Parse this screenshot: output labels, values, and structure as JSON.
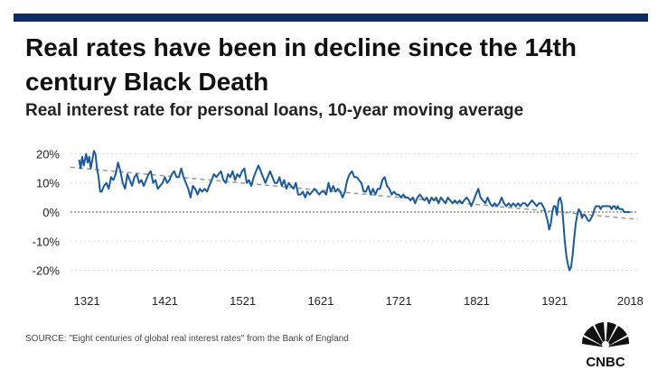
{
  "header": {
    "title": "Real rates have been in decline since the 14th century Black Death",
    "subtitle": "Real interest rate for personal loans, 10-year moving average"
  },
  "footer": {
    "source": "SOURCE: \"Eight centuries of global real interest rates\" from the Bank of England",
    "logo_text": "CNBC"
  },
  "colors": {
    "bar": "#0b2a66",
    "line": "#1a5a9a",
    "trend": "#9a9a9a",
    "grid": "#dcdcdc"
  },
  "chart_data": {
    "type": "line",
    "title": "Real rates have been in decline since the 14th century Black Death",
    "subtitle": "Real interest rate for personal loans, 10-year moving average",
    "xlim": [
      1300,
      2028
    ],
    "ylim": [
      -22,
      22
    ],
    "x_ticks": [
      1321,
      1421,
      1521,
      1621,
      1721,
      1821,
      1921,
      2018
    ],
    "y_ticks": [
      20,
      10,
      0,
      -10,
      -20
    ],
    "y_tick_labels": [
      "20%",
      "10%",
      "0%",
      "-10%",
      "-20%"
    ],
    "grid": "horizontal",
    "series": [
      {
        "values": [
          [
            1311,
            18
          ],
          [
            1313,
            15
          ],
          [
            1315,
            19
          ],
          [
            1317,
            16
          ],
          [
            1320,
            20
          ],
          [
            1322,
            17
          ],
          [
            1324,
            19
          ],
          [
            1326,
            15
          ],
          [
            1328,
            18
          ],
          [
            1330,
            21
          ],
          [
            1332,
            20
          ],
          [
            1334,
            15
          ],
          [
            1336,
            12
          ],
          [
            1338,
            7
          ],
          [
            1340,
            7
          ],
          [
            1343,
            9
          ],
          [
            1346,
            10
          ],
          [
            1349,
            8
          ],
          [
            1352,
            12
          ],
          [
            1355,
            11
          ],
          [
            1358,
            13
          ],
          [
            1361,
            17
          ],
          [
            1364,
            14
          ],
          [
            1367,
            10
          ],
          [
            1370,
            8
          ],
          [
            1373,
            13
          ],
          [
            1376,
            11
          ],
          [
            1379,
            9
          ],
          [
            1382,
            12
          ],
          [
            1385,
            13
          ],
          [
            1388,
            10
          ],
          [
            1391,
            11
          ],
          [
            1394,
            9
          ],
          [
            1397,
            11
          ],
          [
            1400,
            13
          ],
          [
            1403,
            14
          ],
          [
            1406,
            10
          ],
          [
            1409,
            11
          ],
          [
            1412,
            8
          ],
          [
            1415,
            9
          ],
          [
            1418,
            10
          ],
          [
            1421,
            12
          ],
          [
            1424,
            10
          ],
          [
            1427,
            11
          ],
          [
            1430,
            13
          ],
          [
            1433,
            14
          ],
          [
            1436,
            12
          ],
          [
            1439,
            12
          ],
          [
            1442,
            15
          ],
          [
            1445,
            12
          ],
          [
            1448,
            10
          ],
          [
            1451,
            8
          ],
          [
            1454,
            5
          ],
          [
            1457,
            9
          ],
          [
            1460,
            8
          ],
          [
            1463,
            6
          ],
          [
            1466,
            8
          ],
          [
            1469,
            7
          ],
          [
            1472,
            8
          ],
          [
            1475,
            7
          ],
          [
            1478,
            9
          ],
          [
            1481,
            11
          ],
          [
            1484,
            13
          ],
          [
            1487,
            12
          ],
          [
            1490,
            13
          ],
          [
            1493,
            14
          ],
          [
            1496,
            11
          ],
          [
            1499,
            10
          ],
          [
            1502,
            13
          ],
          [
            1505,
            12
          ],
          [
            1508,
            14
          ],
          [
            1511,
            11
          ],
          [
            1514,
            13
          ],
          [
            1517,
            12
          ],
          [
            1520,
            14
          ],
          [
            1523,
            15
          ],
          [
            1526,
            10
          ],
          [
            1529,
            11
          ],
          [
            1532,
            9
          ],
          [
            1535,
            12
          ],
          [
            1538,
            14
          ],
          [
            1541,
            16
          ],
          [
            1544,
            14
          ],
          [
            1547,
            12
          ],
          [
            1550,
            10
          ],
          [
            1553,
            12
          ],
          [
            1556,
            14
          ],
          [
            1559,
            12
          ],
          [
            1562,
            10
          ],
          [
            1565,
            10
          ],
          [
            1568,
            12
          ],
          [
            1571,
            9
          ],
          [
            1574,
            11
          ],
          [
            1577,
            8
          ],
          [
            1580,
            10
          ],
          [
            1583,
            9
          ],
          [
            1586,
            8
          ],
          [
            1589,
            10
          ],
          [
            1592,
            6
          ],
          [
            1595,
            6
          ],
          [
            1598,
            7
          ],
          [
            1601,
            5
          ],
          [
            1604,
            7
          ],
          [
            1607,
            6
          ],
          [
            1610,
            7
          ],
          [
            1613,
            8
          ],
          [
            1616,
            7
          ],
          [
            1619,
            6
          ],
          [
            1622,
            7
          ],
          [
            1625,
            7
          ],
          [
            1628,
            6
          ],
          [
            1631,
            10
          ],
          [
            1634,
            7
          ],
          [
            1637,
            9
          ],
          [
            1640,
            7
          ],
          [
            1643,
            8
          ],
          [
            1646,
            7
          ],
          [
            1649,
            5
          ],
          [
            1652,
            7
          ],
          [
            1655,
            11
          ],
          [
            1658,
            13
          ],
          [
            1661,
            14
          ],
          [
            1664,
            12
          ],
          [
            1667,
            12
          ],
          [
            1670,
            11
          ],
          [
            1673,
            10
          ],
          [
            1676,
            7
          ],
          [
            1679,
            7
          ],
          [
            1682,
            9
          ],
          [
            1685,
            6
          ],
          [
            1688,
            8
          ],
          [
            1691,
            6
          ],
          [
            1694,
            8
          ],
          [
            1697,
            8
          ],
          [
            1700,
            11
          ],
          [
            1703,
            12
          ],
          [
            1706,
            9
          ],
          [
            1709,
            8
          ],
          [
            1712,
            6
          ],
          [
            1715,
            7
          ],
          [
            1718,
            6
          ],
          [
            1721,
            6
          ],
          [
            1724,
            5
          ],
          [
            1727,
            6
          ],
          [
            1730,
            5
          ],
          [
            1733,
            5
          ],
          [
            1736,
            4
          ],
          [
            1739,
            5
          ],
          [
            1742,
            3
          ],
          [
            1745,
            5
          ],
          [
            1748,
            6
          ],
          [
            1751,
            5
          ],
          [
            1754,
            4
          ],
          [
            1757,
            5
          ],
          [
            1760,
            3
          ],
          [
            1763,
            5
          ],
          [
            1766,
            4
          ],
          [
            1769,
            5
          ],
          [
            1772,
            3
          ],
          [
            1775,
            5
          ],
          [
            1778,
            4
          ],
          [
            1781,
            3
          ],
          [
            1784,
            5
          ],
          [
            1787,
            4
          ],
          [
            1790,
            3
          ],
          [
            1793,
            4
          ],
          [
            1796,
            3
          ],
          [
            1799,
            4
          ],
          [
            1802,
            3
          ],
          [
            1805,
            4
          ],
          [
            1808,
            5
          ],
          [
            1811,
            4
          ],
          [
            1814,
            2
          ],
          [
            1817,
            4
          ],
          [
            1820,
            6
          ],
          [
            1823,
            8
          ],
          [
            1826,
            5
          ],
          [
            1829,
            4
          ],
          [
            1832,
            3
          ],
          [
            1835,
            5
          ],
          [
            1838,
            3
          ],
          [
            1841,
            2
          ],
          [
            1844,
            3
          ],
          [
            1847,
            2
          ],
          [
            1850,
            3
          ],
          [
            1853,
            5
          ],
          [
            1856,
            3
          ],
          [
            1859,
            2
          ],
          [
            1862,
            3
          ],
          [
            1865,
            2
          ],
          [
            1868,
            3
          ],
          [
            1871,
            2
          ],
          [
            1874,
            3
          ],
          [
            1877,
            2
          ],
          [
            1880,
            3
          ],
          [
            1883,
            3
          ],
          [
            1886,
            2
          ],
          [
            1889,
            3
          ],
          [
            1892,
            4
          ],
          [
            1895,
            3
          ],
          [
            1898,
            2
          ],
          [
            1901,
            3
          ],
          [
            1904,
            3
          ],
          [
            1906,
            2
          ],
          [
            1908,
            1
          ],
          [
            1910,
            -1
          ],
          [
            1912,
            -3
          ],
          [
            1914,
            -6
          ],
          [
            1916,
            -4
          ],
          [
            1918,
            0
          ],
          [
            1920,
            2
          ],
          [
            1922,
            2
          ],
          [
            1924,
            -1
          ],
          [
            1926,
            4
          ],
          [
            1928,
            5
          ],
          [
            1930,
            3
          ],
          [
            1932,
            -3
          ],
          [
            1934,
            -10
          ],
          [
            1936,
            -15
          ],
          [
            1938,
            -18
          ],
          [
            1940,
            -20
          ],
          [
            1942,
            -19
          ],
          [
            1944,
            -15
          ],
          [
            1946,
            -9
          ],
          [
            1948,
            -4
          ],
          [
            1950,
            -1
          ],
          [
            1952,
            1
          ],
          [
            1954,
            0
          ],
          [
            1956,
            -2
          ],
          [
            1958,
            -1
          ],
          [
            1960,
            -1
          ],
          [
            1962,
            -2
          ],
          [
            1964,
            -3
          ],
          [
            1966,
            -3
          ],
          [
            1968,
            -2
          ],
          [
            1970,
            -1
          ],
          [
            1972,
            1
          ],
          [
            1974,
            2
          ],
          [
            1976,
            2
          ],
          [
            1978,
            2
          ],
          [
            1980,
            1
          ],
          [
            1982,
            2
          ],
          [
            1984,
            2
          ],
          [
            1986,
            2
          ],
          [
            1988,
            2
          ],
          [
            1990,
            2
          ],
          [
            1992,
            2
          ],
          [
            1994,
            1
          ],
          [
            1996,
            2
          ],
          [
            1998,
            2
          ],
          [
            2000,
            1
          ],
          [
            2002,
            2
          ],
          [
            2004,
            1
          ],
          [
            2006,
            1
          ],
          [
            2008,
            1
          ],
          [
            2010,
            0
          ],
          [
            2012,
            0
          ],
          [
            2014,
            0
          ],
          [
            2016,
            0
          ],
          [
            2018,
            0
          ]
        ]
      }
    ],
    "trend_line": [
      [
        1300,
        15.4
      ],
      [
        2028,
        -2.5
      ]
    ]
  }
}
